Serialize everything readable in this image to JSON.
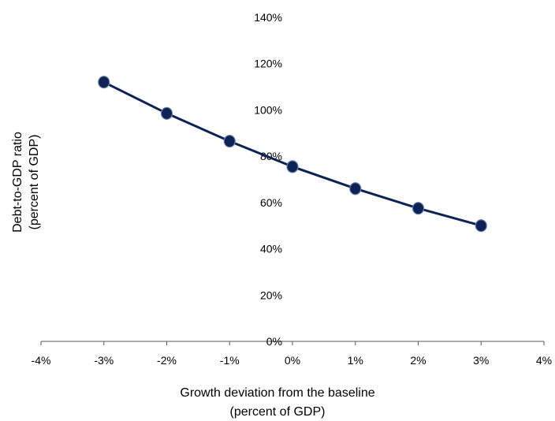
{
  "chart_data": {
    "type": "line",
    "title": "",
    "x": [
      -3,
      -2,
      -1,
      0,
      1,
      2,
      3
    ],
    "series": [
      {
        "values": [
          112,
          98.5,
          86.5,
          75.5,
          66,
          57.5,
          50
        ]
      }
    ],
    "xlabel_lines": [
      "Growth deviation from the baseline",
      "(percent of GDP)"
    ],
    "ylabel_lines": [
      "Debt-to-GDP ratio",
      "(percent of GDP)"
    ],
    "xlim": [
      -4,
      4
    ],
    "ylim": [
      0,
      140
    ],
    "x_ticks": [
      -4,
      -3,
      -2,
      -1,
      0,
      1,
      2,
      3,
      4
    ],
    "x_tick_labels": [
      "-4%",
      "-3%",
      "-2%",
      "-1%",
      "0%",
      "1%",
      "2%",
      "3%",
      "4%"
    ],
    "y_ticks": [
      0,
      20,
      40,
      60,
      80,
      100,
      120,
      140
    ],
    "y_tick_labels": [
      "0%",
      "20%",
      "40%",
      "60%",
      "80%",
      "100%",
      "120%",
      "140%"
    ],
    "grid": false,
    "legend": "none",
    "colors": {
      "line": "#0d2356",
      "marker": "#0d2356",
      "axis": "#595959"
    }
  }
}
